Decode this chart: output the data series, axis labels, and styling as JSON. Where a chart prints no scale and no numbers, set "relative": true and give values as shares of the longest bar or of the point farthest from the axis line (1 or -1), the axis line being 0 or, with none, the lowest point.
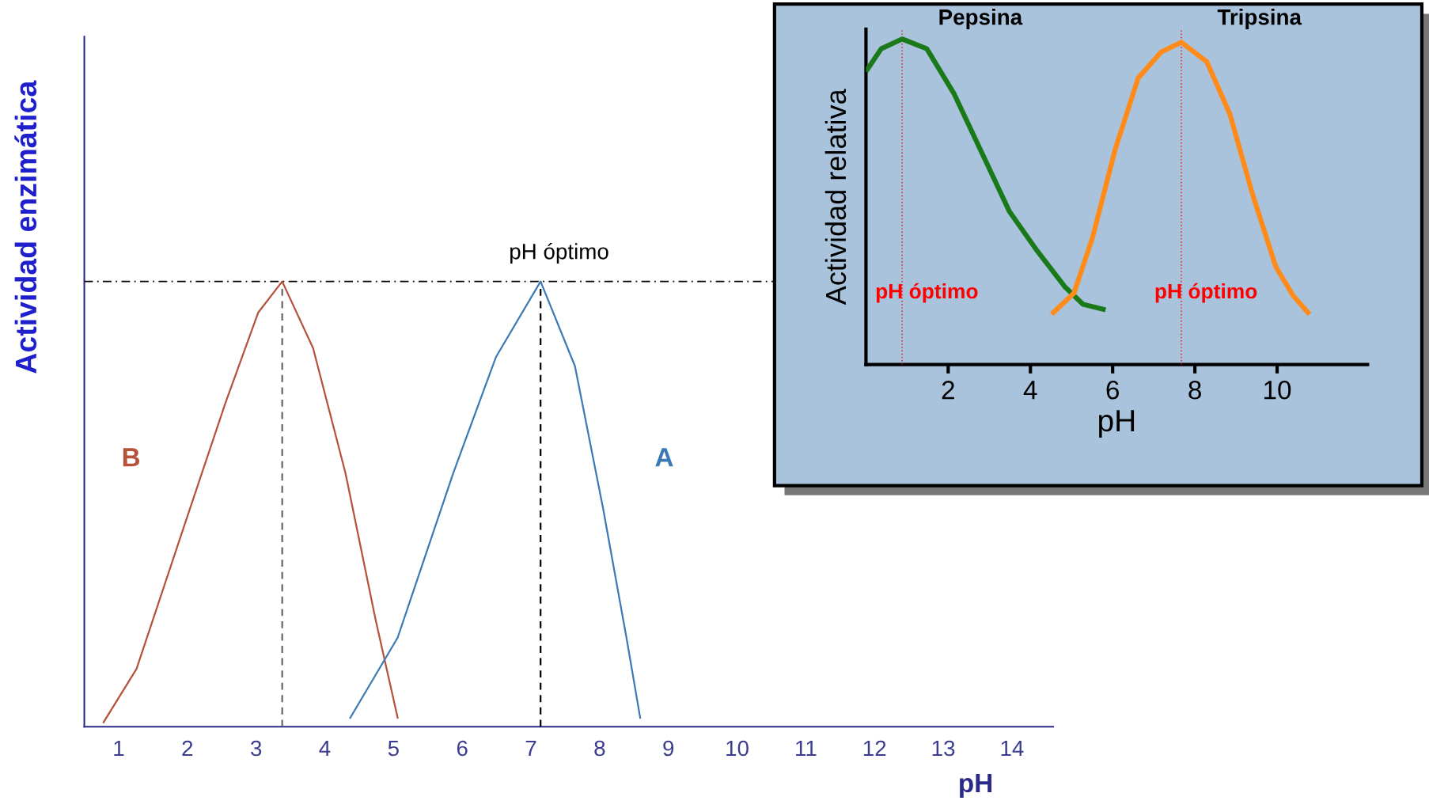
{
  "chart_data": [
    {
      "type": "line",
      "relative": true,
      "xlabel": "pH",
      "ylabel": "Actividad enzimática",
      "xlim": [
        0.5,
        14.6
      ],
      "xticks": [
        1,
        2,
        3,
        4,
        5,
        6,
        7,
        8,
        9,
        10,
        11,
        12,
        13,
        14
      ],
      "grid": false,
      "legend": false,
      "marker": "none",
      "series": [
        {
          "name": "B",
          "color": "#b5523b",
          "x": [
            0.78,
            1.26,
            1.93,
            2.56,
            3.03,
            3.38,
            3.83,
            4.3,
            4.74,
            5.06
          ],
          "values": [
            0.01,
            0.13,
            0.44,
            0.73,
            0.93,
            1,
            0.85,
            0.57,
            0.24,
            0.02
          ]
        },
        {
          "name": "A",
          "color": "#3d7ab5",
          "x": [
            4.37,
            5.06,
            5.87,
            6.49,
            7.14,
            7.64,
            8.05,
            8.39,
            8.59
          ],
          "values": [
            0.02,
            0.2,
            0.57,
            0.83,
            1,
            0.81,
            0.49,
            0.2,
            0.02
          ]
        }
      ],
      "ref_lines": [
        {
          "axis": "y",
          "value": 1,
          "label": "pH óptimo",
          "color": "#000000",
          "line_style": "dashdot"
        },
        {
          "axis": "x",
          "value": 3.38,
          "color": "#666666",
          "line_style": "dashed"
        },
        {
          "axis": "x",
          "value": 7.14,
          "color": "#000000",
          "line_style": "dashed"
        }
      ]
    },
    {
      "type": "line",
      "relative": true,
      "xlabel": "pH",
      "ylabel": "Actividad relativa",
      "xlim": [
        0,
        12.2
      ],
      "xticks": [
        2,
        4,
        6,
        8,
        10
      ],
      "grid": false,
      "legend": false,
      "marker": "none",
      "series": [
        {
          "name": "Pepsina",
          "color": "#1a7a1a",
          "x": [
            0.03,
            0.37,
            0.88,
            1.48,
            2.15,
            2.82,
            3.49,
            4.16,
            4.83,
            5.28,
            5.77
          ],
          "values": [
            0.906,
            0.97,
            1,
            0.97,
            0.83,
            0.65,
            0.47,
            0.35,
            0.24,
            0.185,
            0.17
          ]
        },
        {
          "name": "Tripsina",
          "color": "#ff8c1a",
          "x": [
            4.56,
            5.06,
            5.51,
            6.06,
            6.62,
            7.18,
            7.67,
            8.29,
            8.85,
            9.41,
            9.97,
            10.4,
            10.75
          ],
          "values": [
            0.16,
            0.22,
            0.39,
            0.66,
            0.88,
            0.96,
            0.99,
            0.93,
            0.77,
            0.52,
            0.3,
            0.21,
            0.16
          ]
        }
      ],
      "ref_lines": [
        {
          "axis": "x",
          "value": 0.88,
          "label": "pH óptimo",
          "color": "#ff0000",
          "line_style": "dotted"
        },
        {
          "axis": "x",
          "value": 7.67,
          "label": "pH óptimo",
          "color": "#ff0000",
          "line_style": "dotted"
        }
      ]
    }
  ]
}
